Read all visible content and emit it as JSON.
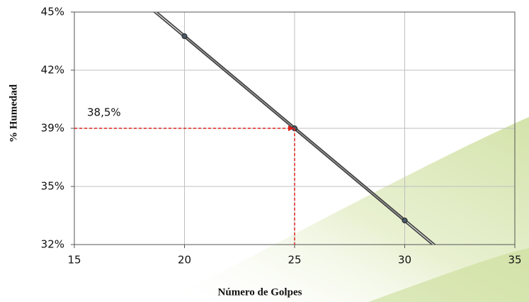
{
  "chart_data": {
    "type": "line",
    "x_label": "Número de Golpes",
    "y_label": "% Humedad",
    "x": [
      20,
      25,
      30
    ],
    "series": [
      {
        "color": "#404040",
        "values": [
          43.65,
          38.5,
          33.35
        ]
      }
    ],
    "xlim": [
      15,
      35
    ],
    "xticks": [
      15,
      20,
      25,
      30,
      35
    ],
    "ylim": [
      32,
      45
    ],
    "yticks": [
      {
        "value": 32,
        "label": "32%"
      },
      {
        "value": 35.25,
        "label": "35%"
      },
      {
        "value": 38.5,
        "label": "39%"
      },
      {
        "value": 41.75,
        "label": "42%"
      },
      {
        "value": 45,
        "label": "45%"
      }
    ],
    "grid": true,
    "annotation": {
      "text": "38,5%",
      "x": 25,
      "y": 38.5,
      "color": "#e0201b"
    }
  }
}
